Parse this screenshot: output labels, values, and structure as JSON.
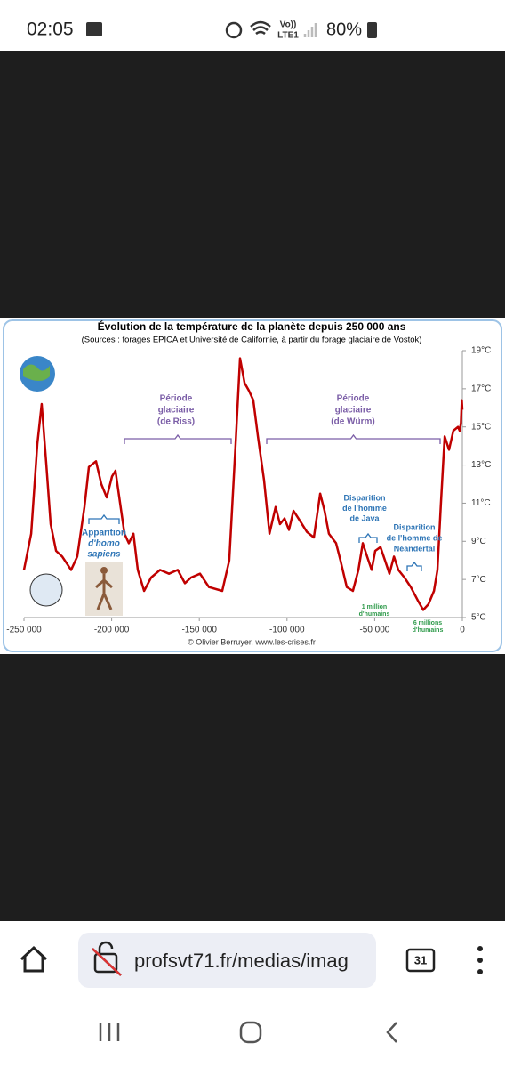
{
  "status_bar": {
    "time": "02:05",
    "network": [
      "Vo))",
      "LTE1"
    ],
    "battery": "80%"
  },
  "chart_data": {
    "type": "line",
    "title": "Évolution de la température de la planète depuis 250 000 ans",
    "subtitle": "(Sources : forages EPICA et Université de Californie, à partir du forage glaciaire de Vostok)",
    "x": [
      -250000,
      -245900,
      -242400,
      -239900,
      -237300,
      -234800,
      -231700,
      -228200,
      -223100,
      -219600,
      -215500,
      -213000,
      -208900,
      -205900,
      -202800,
      -199800,
      -197800,
      -195200,
      -192700,
      -190200,
      -187600,
      -185100,
      -181500,
      -177500,
      -172400,
      -167300,
      -162300,
      -158200,
      -154700,
      -149600,
      -144500,
      -136900,
      -132900,
      -129300,
      -126800,
      -124200,
      -121700,
      -119200,
      -116600,
      -113100,
      -110000,
      -106500,
      -104000,
      -101400,
      -98900,
      -96300,
      -92800,
      -88700,
      -84700,
      -81100,
      -78600,
      -76100,
      -72000,
      -69500,
      -65900,
      -62400,
      -59300,
      -56800,
      -54300,
      -51700,
      -49700,
      -46700,
      -44100,
      -41600,
      -39000,
      -36500,
      -33000,
      -29400,
      -25400,
      -22300,
      -19300,
      -16200,
      -14200,
      -12200,
      -10100,
      -7600,
      -5100,
      -2500,
      -1500,
      -800,
      -300,
      0
    ],
    "series": [
      {
        "color": "#c00000",
        "values": [
          7.5,
          9.4,
          14.1,
          16.2,
          13.1,
          9.9,
          8.5,
          8.2,
          7.5,
          8.2,
          10.8,
          12.9,
          13.2,
          12.0,
          11.3,
          12.4,
          12.7,
          11.0,
          9.4,
          8.9,
          9.4,
          7.5,
          6.4,
          7.1,
          7.5,
          7.3,
          7.5,
          6.8,
          7.1,
          7.3,
          6.6,
          6.4,
          8.0,
          14.1,
          18.6,
          17.3,
          16.9,
          16.4,
          14.5,
          12.2,
          9.4,
          10.8,
          9.9,
          10.2,
          9.6,
          10.6,
          10.1,
          9.5,
          9.2,
          11.5,
          10.6,
          9.4,
          8.9,
          8.0,
          6.6,
          6.4,
          7.5,
          8.9,
          8.2,
          7.5,
          8.5,
          8.7,
          8.0,
          7.3,
          8.2,
          7.5,
          7.1,
          6.6,
          5.9,
          5.4,
          5.7,
          6.4,
          7.5,
          11.0,
          14.5,
          13.8,
          14.8,
          15.0,
          14.8,
          15.2,
          16.4,
          15.9
        ]
      }
    ],
    "xlim": [
      -250000,
      0
    ],
    "xticks": [
      {
        "value": -250000,
        "label": "-250 000"
      },
      {
        "value": -200000,
        "label": "-200 000"
      },
      {
        "value": -150000,
        "label": "-150 000"
      },
      {
        "value": -100000,
        "label": "-100 000"
      },
      {
        "value": -50000,
        "label": "-50 000"
      },
      0
    ],
    "ylim": [
      5,
      19
    ],
    "yticks": [
      {
        "value": 5,
        "label": "5°C"
      },
      {
        "value": 7,
        "label": "7°C"
      },
      {
        "value": 9,
        "label": "9°C"
      },
      {
        "value": 11,
        "label": "11°C"
      },
      {
        "value": 13,
        "label": "13°C"
      },
      {
        "value": 15,
        "label": "15°C"
      },
      {
        "value": 17,
        "label": "17°C"
      },
      {
        "value": 19,
        "label": "19°C"
      }
    ],
    "annotations": [
      {
        "lines": [
          "Période",
          "glaciaire",
          "(de Riss)"
        ]
      },
      {
        "lines": [
          "Période",
          "glaciaire",
          "(de Würm)"
        ]
      },
      {
        "lines": [
          "Apparition",
          "d'homo",
          "sapiens"
        ]
      },
      {
        "lines": [
          "Disparition",
          "de l'homme",
          "de Java"
        ]
      },
      {
        "lines": [
          "Disparition",
          "de l'homme de",
          "Néandertal"
        ]
      },
      {
        "lines": [
          "1 million",
          "d'humains"
        ]
      },
      {
        "lines": [
          "6 millions",
          "d'humains"
        ]
      }
    ],
    "credit": "© Olivier Berruyer, www.les-crises.fr"
  },
  "browser": {
    "url": "profsvt71.fr/medias/imag",
    "tab_count": "31"
  }
}
